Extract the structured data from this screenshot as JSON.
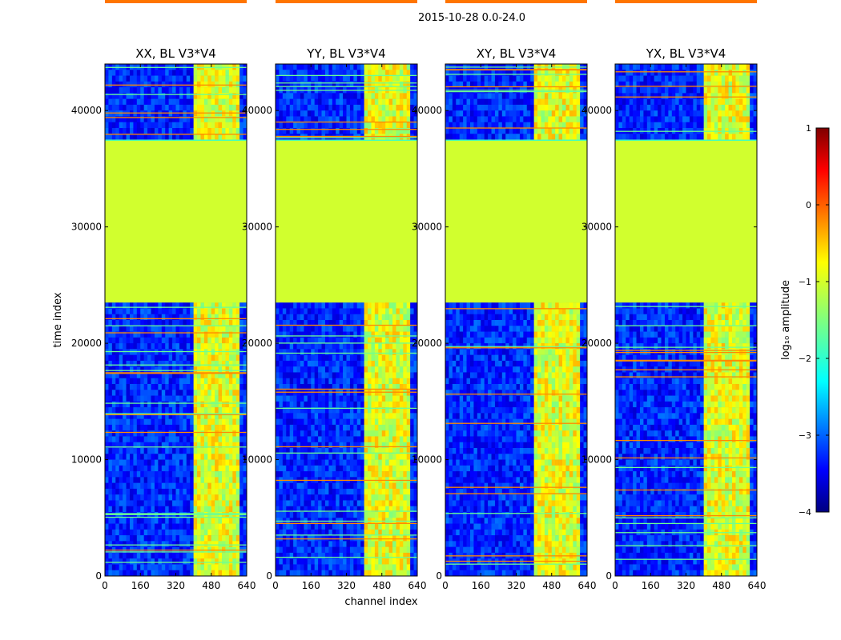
{
  "chart_data": {
    "type": "heatmap",
    "title": "2015-10-28 0.0-24.0",
    "xlabel": "channel index",
    "ylabel": "time index",
    "xlim": [
      0,
      640
    ],
    "ylim": [
      0,
      44000
    ],
    "x_ticks": [
      "0",
      "160",
      "320",
      "480",
      "640"
    ],
    "y_ticks": [
      "0",
      "10000",
      "20000",
      "30000",
      "40000"
    ],
    "x_tick_values": [
      0,
      160,
      320,
      480,
      640
    ],
    "y_tick_values": [
      0,
      10000,
      20000,
      30000,
      40000
    ],
    "panels": [
      {
        "title": "XX, BL V3*V4",
        "polarization": "XX"
      },
      {
        "title": "YY, BL V3*V4",
        "polarization": "YY"
      },
      {
        "title": "XY, BL V3*V4",
        "polarization": "XY"
      },
      {
        "title": "YX, BL V3*V4",
        "polarization": "YX"
      }
    ],
    "features": {
      "constant_block": {
        "time_start": 23500,
        "time_end": 37500,
        "log10_amplitude": -1.1
      },
      "flag_line": {
        "time": 23400,
        "log10_amplitude": -0.2
      },
      "rfi_channel_band": [
        400,
        600
      ],
      "background_log10_amplitude": -3.2,
      "band_log10_amplitude": -1.0
    },
    "colorbar": {
      "label": "log₁₀ amplitude",
      "vmin": -4,
      "vmax": 1,
      "ticks": [
        "1",
        "0",
        "−1",
        "−2",
        "−3",
        "−4"
      ],
      "tick_values": [
        1,
        0,
        -1,
        -2,
        -3,
        -4
      ],
      "colormap": "jet"
    }
  },
  "colors": {
    "frame": "#000000",
    "background": "#ffffff"
  }
}
